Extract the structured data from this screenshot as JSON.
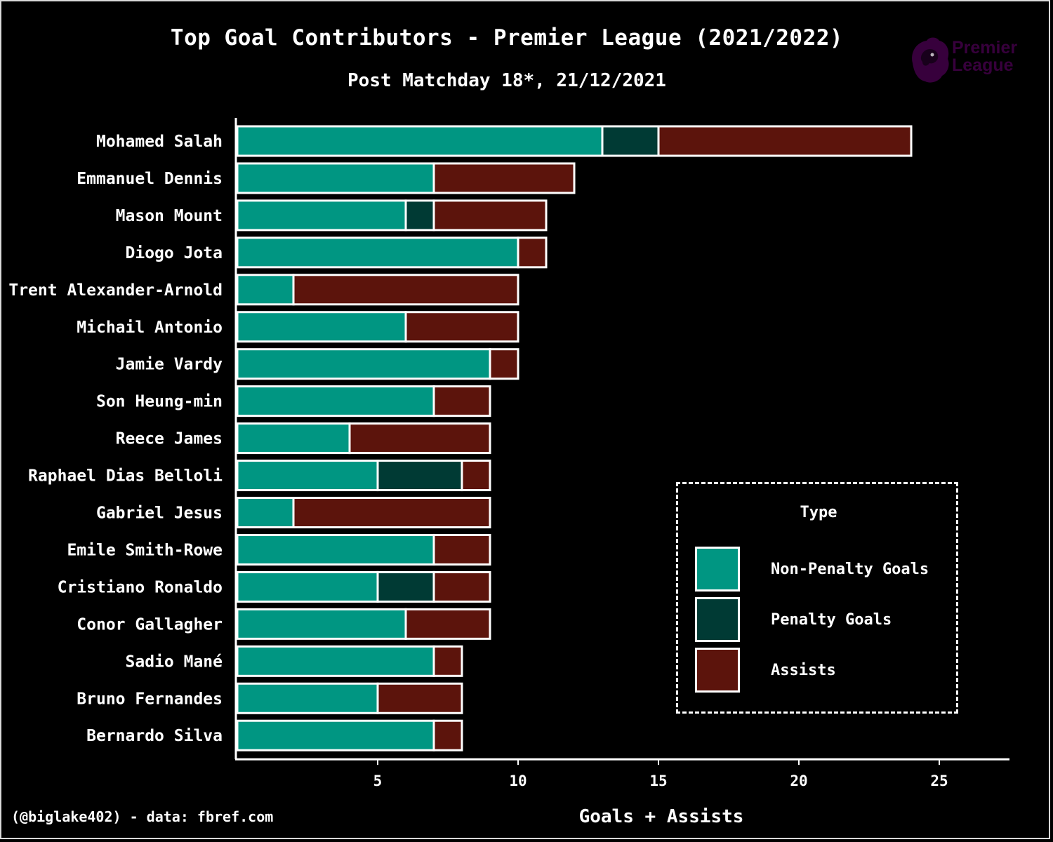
{
  "title": "Top Goal Contributors - Premier League (2021/2022)",
  "subtitle": "Post Matchday 18*, 21/12/2021",
  "credit": "(@biglake402) - data: fbref.com",
  "logo_text": [
    "Premier",
    "League"
  ],
  "colors": {
    "non_penalty": "#009682",
    "penalty": "#003a34",
    "assists": "#5c140c",
    "logo_purple": "#37003c"
  },
  "chart_data": {
    "type": "bar",
    "orientation": "horizontal",
    "stacked": true,
    "title": "Top Goal Contributors - Premier League (2021/2022)",
    "xlabel": "Goals + Assists",
    "ylabel": "",
    "xlim": [
      0,
      27.5
    ],
    "xticks": [
      5,
      10,
      15,
      20,
      25
    ],
    "grid": false,
    "legend_title": "Type",
    "legend_position": "bottom-right",
    "categories": [
      "Mohamed Salah",
      "Emmanuel Dennis",
      "Mason Mount",
      "Diogo Jota",
      "Trent Alexander-Arnold",
      "Michail Antonio",
      "Jamie Vardy",
      "Son Heung-min",
      "Reece James",
      "Raphael Dias Belloli",
      "Gabriel Jesus",
      "Emile Smith-Rowe",
      "Cristiano Ronaldo",
      "Conor Gallagher",
      "Sadio Mané",
      "Bruno Fernandes",
      "Bernardo Silva"
    ],
    "series": [
      {
        "name": "Non-Penalty Goals",
        "color": "#009682",
        "values": [
          13,
          7,
          6,
          10,
          2,
          6,
          9,
          7,
          4,
          5,
          2,
          7,
          5,
          6,
          7,
          5,
          7
        ]
      },
      {
        "name": "Penalty Goals",
        "color": "#003a34",
        "values": [
          2,
          0,
          1,
          0,
          0,
          0,
          0,
          0,
          0,
          3,
          0,
          0,
          2,
          0,
          0,
          0,
          0
        ]
      },
      {
        "name": "Assists",
        "color": "#5c140c",
        "values": [
          9,
          5,
          4,
          1,
          8,
          4,
          1,
          2,
          5,
          1,
          7,
          2,
          2,
          3,
          1,
          3,
          1
        ]
      }
    ]
  }
}
